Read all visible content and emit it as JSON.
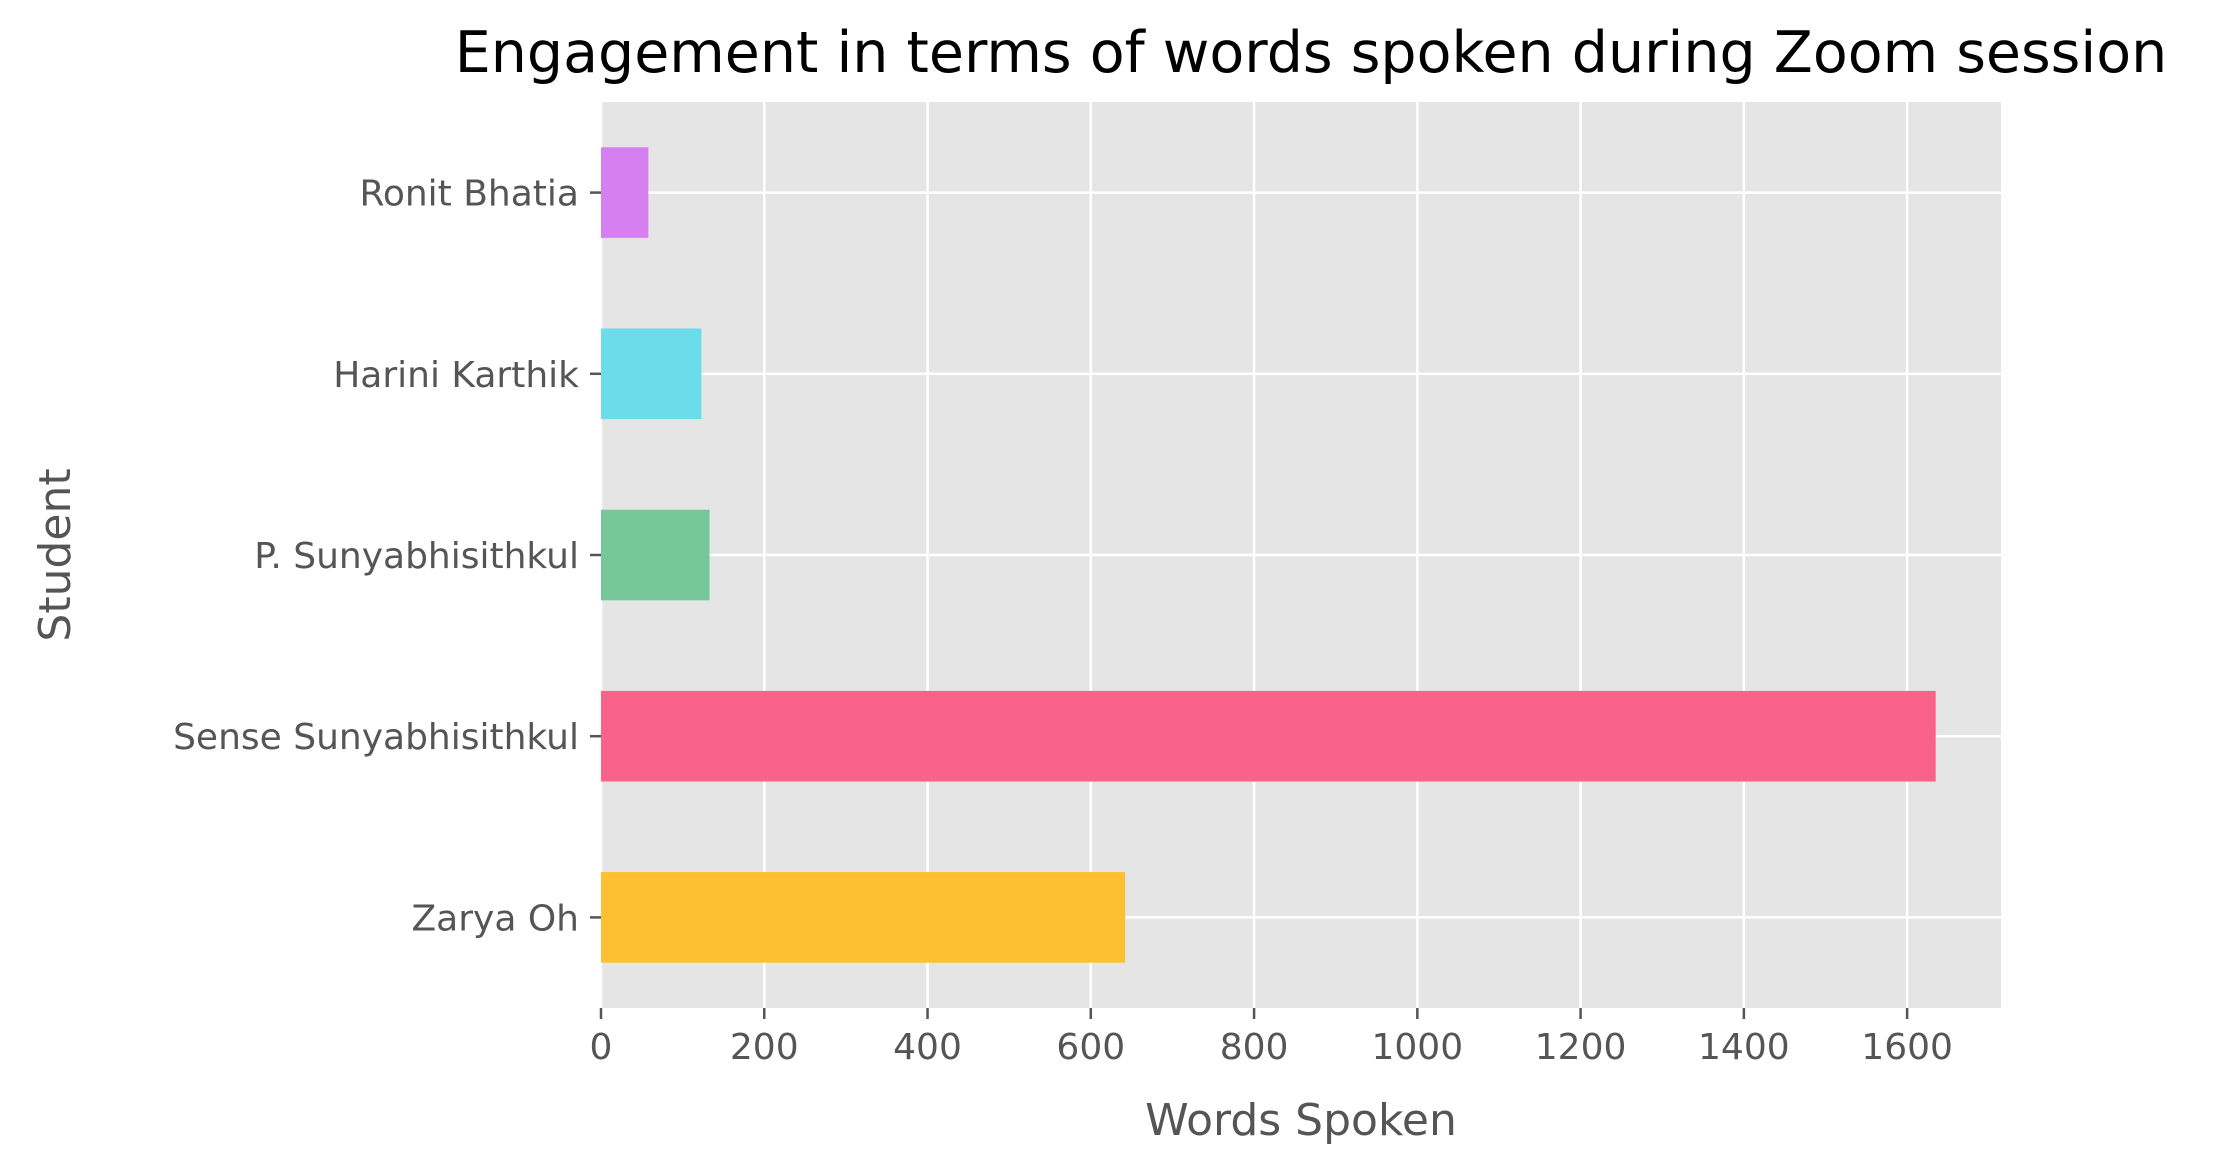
{
  "chart_data": {
    "type": "bar",
    "orientation": "horizontal",
    "title": "Engagement in terms of words spoken during Zoom session",
    "xlabel": "Words Spoken",
    "ylabel": "Student",
    "categories": [
      "Ronit Bhatia",
      "Harini Karthik",
      "P. Sunyabhisithkul",
      "Sense Sunyabhisithkul",
      "Zarya Oh"
    ],
    "values": [
      58,
      123,
      133,
      1635,
      642
    ],
    "colors": [
      "#d67ff0",
      "#6cdcea",
      "#76c89b",
      "#f9628b",
      "#fdc030"
    ],
    "xlim": [
      0,
      1715
    ],
    "xticks": [
      0,
      200,
      400,
      600,
      800,
      1000,
      1200,
      1400,
      1600
    ],
    "grid": true,
    "style": {
      "plot_background": "#e5e5e5",
      "grid_color": "#ffffff"
    }
  }
}
